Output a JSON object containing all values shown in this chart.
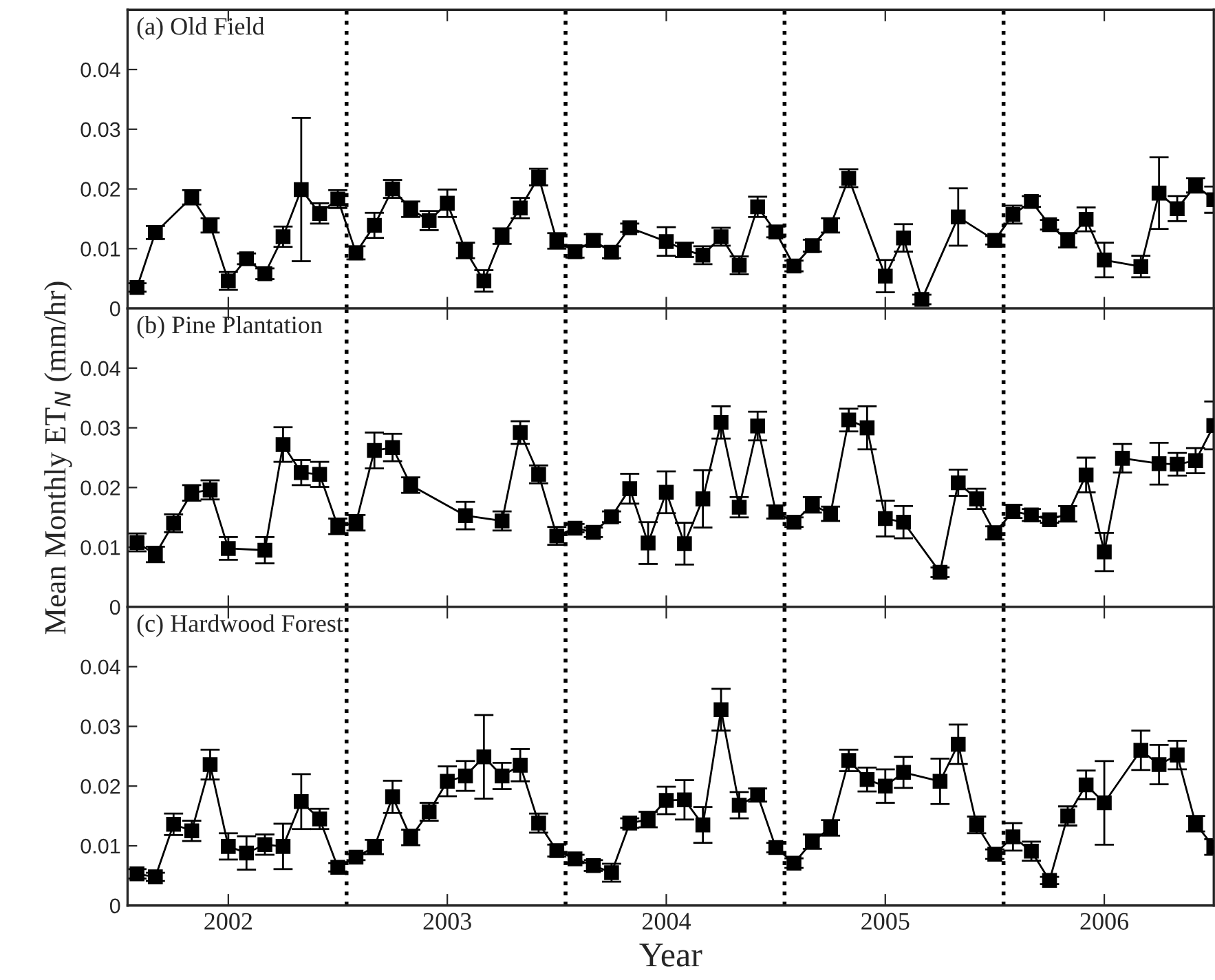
{
  "chart_data": [
    {
      "type": "line",
      "title": "(a) Old Field",
      "xlim": [
        2001.54,
        2006.5
      ],
      "ylim": [
        0,
        0.05
      ],
      "xticks": [
        2002,
        2003,
        2004,
        2005,
        2006
      ],
      "yticks": [
        0,
        0.01,
        0.02,
        0.03,
        0.04
      ],
      "tick_labels": "y",
      "marker": "square",
      "line_style": "solid",
      "ref_lines": [
        {
          "axis": "x",
          "value": 2002.54,
          "line_style": "dotted",
          "color": "#000000"
        },
        {
          "axis": "x",
          "value": 2003.54,
          "line_style": "dotted",
          "color": "#000000"
        },
        {
          "axis": "x",
          "value": 2004.54,
          "line_style": "dotted",
          "color": "#000000"
        },
        {
          "axis": "x",
          "value": 2005.54,
          "line_style": "dotted",
          "color": "#000000"
        }
      ],
      "series": [
        {
          "color": "#000000",
          "x": [
            2001.583,
            2001.667,
            2001.833,
            2001.917,
            2002,
            2002.083,
            2002.167,
            2002.25,
            2002.333,
            2002.417,
            2002.5,
            2002.583,
            2002.667,
            2002.75,
            2002.833,
            2002.917,
            2003,
            2003.083,
            2003.167,
            2003.25,
            2003.333,
            2003.417,
            2003.5,
            2003.583,
            2003.667,
            2003.75,
            2003.833,
            2004,
            2004.083,
            2004.167,
            2004.25,
            2004.333,
            2004.417,
            2004.5,
            2004.583,
            2004.667,
            2004.75,
            2004.833,
            2005,
            2005.083,
            2005.167,
            2005.333,
            2005.5,
            2005.583,
            2005.667,
            2005.75,
            2005.833,
            2005.917,
            2006,
            2006.167,
            2006.25,
            2006.333,
            2006.417,
            2006.5
          ],
          "values": [
            0.0035,
            0.0127,
            0.0186,
            0.0139,
            0.0046,
            0.0083,
            0.0058,
            0.012,
            0.0199,
            0.0159,
            0.0183,
            0.0093,
            0.0139,
            0.02,
            0.0166,
            0.0147,
            0.0176,
            0.0097,
            0.0046,
            0.0121,
            0.0168,
            0.022,
            0.0113,
            0.0095,
            0.0114,
            0.0094,
            0.0135,
            0.0112,
            0.0098,
            0.0089,
            0.012,
            0.0072,
            0.017,
            0.0128,
            0.0071,
            0.0105,
            0.0139,
            0.0218,
            0.0054,
            0.0118,
            0.0015,
            0.0153,
            0.0114,
            0.0157,
            0.0179,
            0.014,
            0.0114,
            0.0149,
            0.0081,
            0.007,
            0.0193,
            0.0167,
            0.0206,
            0.0182
          ],
          "errors": [
            0.0007,
            0.0011,
            0.0012,
            0.0012,
            0.0015,
            0.0009,
            0.0009,
            0.0017,
            0.012,
            0.0017,
            0.0015,
            0.0011,
            0.0021,
            0.0015,
            0.0013,
            0.0016,
            0.0023,
            0.0013,
            0.0018,
            0.0013,
            0.0017,
            0.0014,
            0.0013,
            0.001,
            0.001,
            0.001,
            0.0007,
            0.0024,
            0.0012,
            0.0015,
            0.0015,
            0.0015,
            0.0017,
            0.0009,
            0.0009,
            0.001,
            0.0012,
            0.0015,
            0.0027,
            0.0023,
            0.0008,
            0.0048,
            0.0007,
            0.0015,
            0.0009,
            0.0008,
            0.0012,
            0.002,
            0.0029,
            0.0018,
            0.006,
            0.0021,
            0.0012,
            0.0022
          ]
        }
      ]
    },
    {
      "type": "line",
      "title": "(b) Pine Plantation",
      "ylabel": "Mean Monthly ET$_{N}$ (mm/hr)",
      "xlim": [
        2001.54,
        2006.5
      ],
      "ylim": [
        0,
        0.05
      ],
      "xticks": [
        2002,
        2003,
        2004,
        2005,
        2006
      ],
      "yticks": [
        0,
        0.01,
        0.02,
        0.03,
        0.04
      ],
      "tick_labels": "y",
      "marker": "square",
      "line_style": "solid",
      "ref_lines": [
        {
          "axis": "x",
          "value": 2002.54,
          "line_style": "dotted",
          "color": "#000000"
        },
        {
          "axis": "x",
          "value": 2003.54,
          "line_style": "dotted",
          "color": "#000000"
        },
        {
          "axis": "x",
          "value": 2004.54,
          "line_style": "dotted",
          "color": "#000000"
        },
        {
          "axis": "x",
          "value": 2005.54,
          "line_style": "dotted",
          "color": "#000000"
        }
      ],
      "series": [
        {
          "color": "#000000",
          "x": [
            2001.583,
            2001.667,
            2001.75,
            2001.833,
            2001.917,
            2002,
            2002.167,
            2002.25,
            2002.333,
            2002.417,
            2002.5,
            2002.583,
            2002.667,
            2002.75,
            2002.833,
            2003.083,
            2003.25,
            2003.333,
            2003.417,
            2003.5,
            2003.583,
            2003.667,
            2003.75,
            2003.833,
            2003.917,
            2004,
            2004.083,
            2004.167,
            2004.25,
            2004.333,
            2004.417,
            2004.5,
            2004.583,
            2004.667,
            2004.75,
            2004.833,
            2004.917,
            2005,
            2005.083,
            2005.25,
            2005.333,
            2005.417,
            2005.5,
            2005.583,
            2005.667,
            2005.75,
            2005.833,
            2005.917,
            2006,
            2006.083,
            2006.25,
            2006.333,
            2006.417,
            2006.5
          ],
          "values": [
            0.0108,
            0.0088,
            0.014,
            0.0191,
            0.0196,
            0.0098,
            0.0095,
            0.0272,
            0.0225,
            0.0222,
            0.0135,
            0.0141,
            0.0262,
            0.0267,
            0.0204,
            0.0153,
            0.0144,
            0.0292,
            0.0222,
            0.0119,
            0.0132,
            0.0125,
            0.0151,
            0.0198,
            0.0107,
            0.0192,
            0.0106,
            0.0181,
            0.0309,
            0.0167,
            0.0303,
            0.0159,
            0.0142,
            0.0171,
            0.0156,
            0.0313,
            0.03,
            0.0148,
            0.0142,
            0.0058,
            0.0208,
            0.0181,
            0.0124,
            0.016,
            0.0154,
            0.0146,
            0.0156,
            0.0221,
            0.0092,
            0.0249,
            0.024,
            0.0239,
            0.0245,
            0.0304
          ],
          "errors": [
            0.0015,
            0.0013,
            0.0015,
            0.0013,
            0.0016,
            0.0019,
            0.0022,
            0.0029,
            0.0021,
            0.0021,
            0.0013,
            0.0013,
            0.003,
            0.0023,
            0.0013,
            0.0023,
            0.0016,
            0.0019,
            0.0015,
            0.0015,
            0.0007,
            0.0008,
            0.0009,
            0.0025,
            0.0035,
            0.0035,
            0.0035,
            0.0048,
            0.0027,
            0.0017,
            0.0024,
            0.0011,
            0.0008,
            0.0013,
            0.0012,
            0.0019,
            0.0036,
            0.003,
            0.0027,
            0.0008,
            0.0022,
            0.0017,
            0.0011,
            0.0011,
            0.001,
            0.0005,
            0.0013,
            0.0029,
            0.0032,
            0.0024,
            0.0035,
            0.0019,
            0.0021,
            0.004
          ]
        }
      ]
    },
    {
      "type": "line",
      "title": "(c) Hardwood Forest",
      "xlabel": "Year",
      "xlim": [
        2001.54,
        2006.5
      ],
      "ylim": [
        0,
        0.05
      ],
      "xticks": [
        2002,
        2003,
        2004,
        2005,
        2006
      ],
      "yticks": [
        0,
        0.01,
        0.02,
        0.03,
        0.04
      ],
      "marker": "square",
      "line_style": "solid",
      "ref_lines": [
        {
          "axis": "x",
          "value": 2002.54,
          "line_style": "dotted",
          "color": "#000000"
        },
        {
          "axis": "x",
          "value": 2003.54,
          "line_style": "dotted",
          "color": "#000000"
        },
        {
          "axis": "x",
          "value": 2004.54,
          "line_style": "dotted",
          "color": "#000000"
        },
        {
          "axis": "x",
          "value": 2005.54,
          "line_style": "dotted",
          "color": "#000000"
        }
      ],
      "series": [
        {
          "color": "#000000",
          "x": [
            2001.583,
            2001.667,
            2001.75,
            2001.833,
            2001.917,
            2002,
            2002.083,
            2002.167,
            2002.25,
            2002.333,
            2002.417,
            2002.5,
            2002.583,
            2002.667,
            2002.75,
            2002.833,
            2002.917,
            2003,
            2003.083,
            2003.167,
            2003.25,
            2003.333,
            2003.417,
            2003.5,
            2003.583,
            2003.667,
            2003.75,
            2003.833,
            2003.917,
            2004,
            2004.083,
            2004.167,
            2004.25,
            2004.333,
            2004.417,
            2004.5,
            2004.583,
            2004.667,
            2004.75,
            2004.833,
            2004.917,
            2005,
            2005.083,
            2005.25,
            2005.333,
            2005.417,
            2005.5,
            2005.583,
            2005.667,
            2005.75,
            2005.833,
            2005.917,
            2006,
            2006.167,
            2006.25,
            2006.333,
            2006.417,
            2006.5
          ],
          "values": [
            0.0053,
            0.0048,
            0.0136,
            0.0125,
            0.0236,
            0.0099,
            0.0088,
            0.0102,
            0.0099,
            0.0174,
            0.0145,
            0.0064,
            0.0081,
            0.0098,
            0.0182,
            0.0114,
            0.0157,
            0.0208,
            0.0217,
            0.0249,
            0.0217,
            0.0235,
            0.0138,
            0.0092,
            0.0078,
            0.0067,
            0.0055,
            0.0138,
            0.0144,
            0.0176,
            0.0177,
            0.0135,
            0.0328,
            0.0168,
            0.0185,
            0.0097,
            0.0071,
            0.0107,
            0.013,
            0.0243,
            0.0211,
            0.02,
            0.0223,
            0.0208,
            0.027,
            0.0135,
            0.0086,
            0.0115,
            0.0091,
            0.0042,
            0.015,
            0.0202,
            0.0172,
            0.026,
            0.0236,
            0.0252,
            0.0137,
            0.0098
          ],
          "errors": [
            0.0008,
            0.0007,
            0.0018,
            0.0017,
            0.0025,
            0.0022,
            0.0028,
            0.0017,
            0.0038,
            0.0046,
            0.0017,
            0.0007,
            0.0005,
            0.0012,
            0.0027,
            0.0013,
            0.0015,
            0.0025,
            0.0025,
            0.007,
            0.0022,
            0.0027,
            0.0016,
            0.001,
            0.0007,
            0.0009,
            0.0015,
            0.0008,
            0.0013,
            0.0023,
            0.0033,
            0.003,
            0.0035,
            0.0022,
            0.0011,
            0.0008,
            0.0008,
            0.0012,
            0.0013,
            0.0018,
            0.002,
            0.0028,
            0.0026,
            0.0038,
            0.0033,
            0.0014,
            0.0008,
            0.0023,
            0.0016,
            0.0006,
            0.0016,
            0.0024,
            0.007,
            0.0033,
            0.0033,
            0.0024,
            0.0013,
            0.0013
          ]
        }
      ]
    }
  ]
}
